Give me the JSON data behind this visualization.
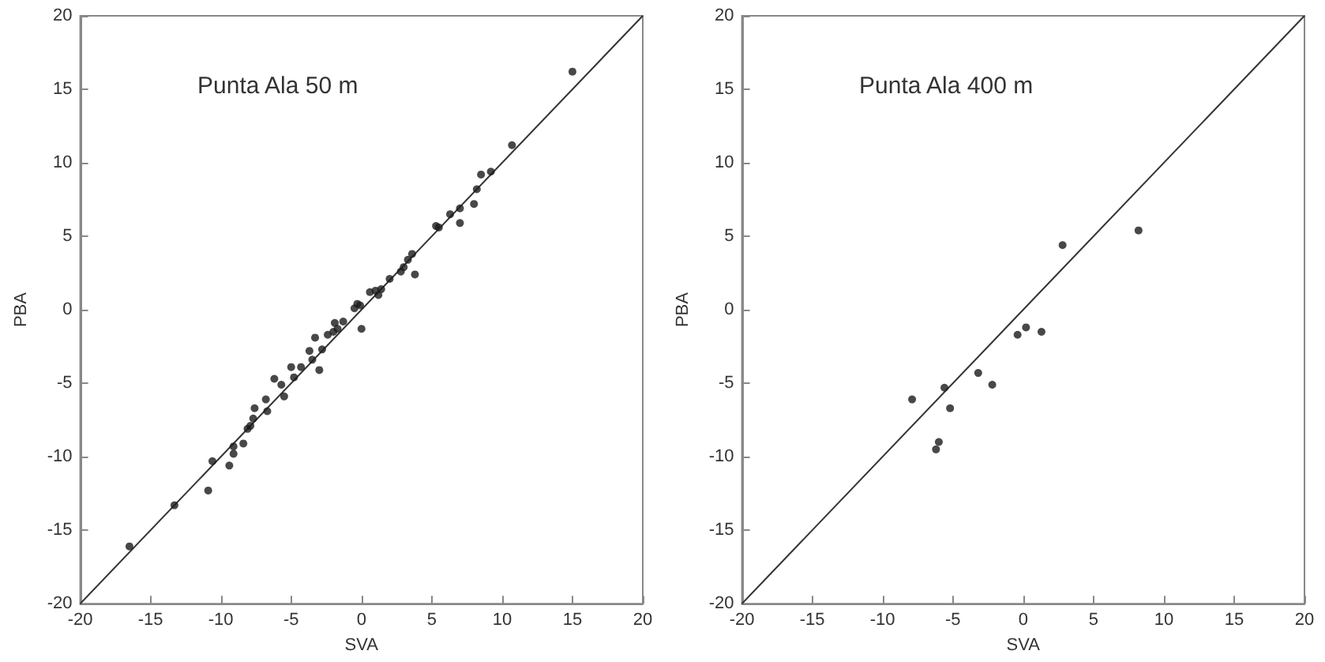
{
  "chart_data": [
    {
      "type": "scatter",
      "title": "Punta Ala 50 m",
      "xlabel": "SVA",
      "ylabel": "PBA",
      "xlim": [
        -20,
        20
      ],
      "ylim": [
        -20,
        20
      ],
      "xticks": [
        -20,
        -15,
        -10,
        -5,
        0,
        5,
        10,
        15,
        20
      ],
      "yticks": [
        -20,
        -15,
        -10,
        -5,
        0,
        5,
        10,
        15,
        20
      ],
      "grid": false,
      "marker": "circle",
      "series": [
        {
          "color": "#1a1a1a",
          "x": [
            -16.5,
            -13.3,
            -10.9,
            -10.6,
            -9.4,
            -9.1,
            -9.1,
            -8.4,
            -8.1,
            -7.9,
            -7.7,
            -7.6,
            -6.7,
            -6.8,
            -6.2,
            -5.5,
            -5.7,
            -5.0,
            -4.8,
            -4.3,
            -3.7,
            -3.3,
            -3.0,
            -3.5,
            -2.8,
            -2.4,
            -1.9,
            -2.0,
            -1.7,
            -1.3,
            0.0,
            -0.5,
            -0.3,
            -0.1,
            0.6,
            1.0,
            1.2,
            1.4,
            2.0,
            2.8,
            3.0,
            3.3,
            3.6,
            3.8,
            5.3,
            5.5,
            6.3,
            7.0,
            7.0,
            8.0,
            8.2,
            8.5,
            9.2,
            10.7,
            15.0
          ],
          "values": [
            -16.1,
            -13.3,
            -12.3,
            -10.3,
            -10.6,
            -9.8,
            -9.3,
            -9.1,
            -8.1,
            -7.9,
            -7.4,
            -6.7,
            -6.9,
            -6.1,
            -4.7,
            -5.9,
            -5.1,
            -3.9,
            -4.6,
            -3.9,
            -2.8,
            -1.9,
            -4.1,
            -3.4,
            -2.7,
            -1.7,
            -0.9,
            -1.5,
            -1.3,
            -0.8,
            -1.3,
            0.1,
            0.4,
            0.3,
            1.2,
            1.3,
            1.0,
            1.4,
            2.1,
            2.6,
            2.9,
            3.4,
            3.8,
            2.4,
            5.7,
            5.6,
            6.5,
            6.9,
            5.9,
            7.2,
            8.2,
            9.2,
            9.4,
            11.2,
            16.2
          ]
        },
        {
          "type": "line",
          "marker": "none",
          "color": "#333333",
          "x": [
            -20,
            20
          ],
          "values": [
            -20,
            20
          ]
        }
      ]
    },
    {
      "type": "scatter",
      "title": "Punta Ala 400 m",
      "xlabel": "SVA",
      "ylabel": "PBA",
      "xlim": [
        -20,
        20
      ],
      "ylim": [
        -20,
        20
      ],
      "xticks": [
        -20,
        -15,
        -10,
        -5,
        0,
        5,
        10,
        15,
        20
      ],
      "yticks": [
        -20,
        -15,
        -10,
        -5,
        0,
        5,
        10,
        15,
        20
      ],
      "grid": false,
      "marker": "circle",
      "series": [
        {
          "color": "#1a1a1a",
          "x": [
            -7.9,
            -5.6,
            -5.2,
            -6.0,
            -6.2,
            -3.2,
            -2.2,
            -0.4,
            0.2,
            1.3,
            2.8,
            8.2
          ],
          "values": [
            -6.1,
            -5.3,
            -6.7,
            -9.0,
            -9.5,
            -4.3,
            -5.1,
            -1.7,
            -1.2,
            -1.5,
            4.4,
            5.4
          ]
        },
        {
          "type": "line",
          "marker": "none",
          "color": "#333333",
          "x": [
            -20,
            20
          ],
          "values": [
            -20,
            20
          ]
        }
      ]
    }
  ]
}
